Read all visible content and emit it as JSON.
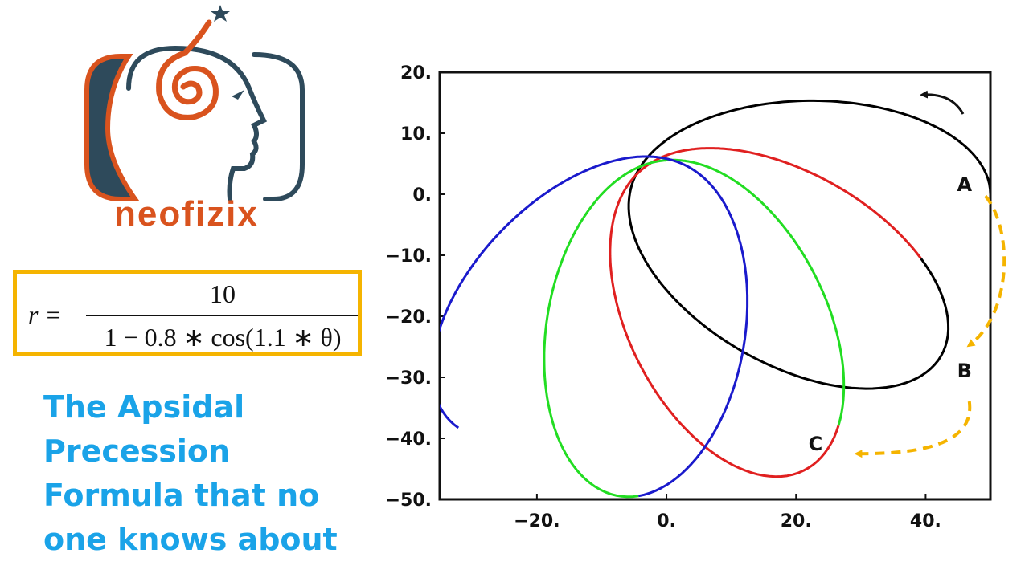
{
  "brand": {
    "name": "neofizix",
    "colors": {
      "orange": "#d9531e",
      "slate": "#2e4a5b"
    }
  },
  "formula": {
    "lhs": "r =",
    "numerator": "10",
    "denominator": "1 − 0.8 ∗ cos(1.1 ∗ θ)",
    "border_color": "#f5b400"
  },
  "headline": {
    "lines": [
      "The Apsidal",
      "Precession",
      "Formula that no",
      "one knows about"
    ],
    "color": "#1aa3e8"
  },
  "chart_data": {
    "type": "line",
    "title": "",
    "xlabel": "",
    "ylabel": "",
    "xlim": [
      -35,
      50
    ],
    "ylim": [
      -50,
      20
    ],
    "x_ticks": [
      -20,
      0,
      20,
      40
    ],
    "x_tick_labels": [
      "−20.",
      "0.",
      "20.",
      "40."
    ],
    "y_ticks": [
      20,
      10,
      0,
      -10,
      -20,
      -30,
      -40,
      -50
    ],
    "y_tick_labels": [
      "20.",
      "10.",
      "0.",
      "−10.",
      "−20.",
      "−30.",
      "−40.",
      "−50."
    ],
    "equation": {
      "numerator": 10,
      "eccentricity": 0.8,
      "k": 1.1
    },
    "series": [
      {
        "color": "#000000",
        "theta_range_deg": [
          0,
          345
        ]
      },
      {
        "color": "#e02020",
        "theta_range_deg": [
          345,
          665
        ]
      },
      {
        "color": "#22dd22",
        "theta_range_deg": [
          665,
          985
        ]
      },
      {
        "color": "#1a1acc",
        "theta_range_deg": [
          985,
          1310
        ]
      }
    ],
    "point_labels": [
      {
        "text": "A",
        "x": 46,
        "y": 0.5
      },
      {
        "text": "B",
        "x": 46,
        "y": -30
      },
      {
        "text": "C",
        "x": 23,
        "y": -42
      }
    ],
    "arrow_color": "#f5b400",
    "grid": false,
    "legend": "none"
  }
}
